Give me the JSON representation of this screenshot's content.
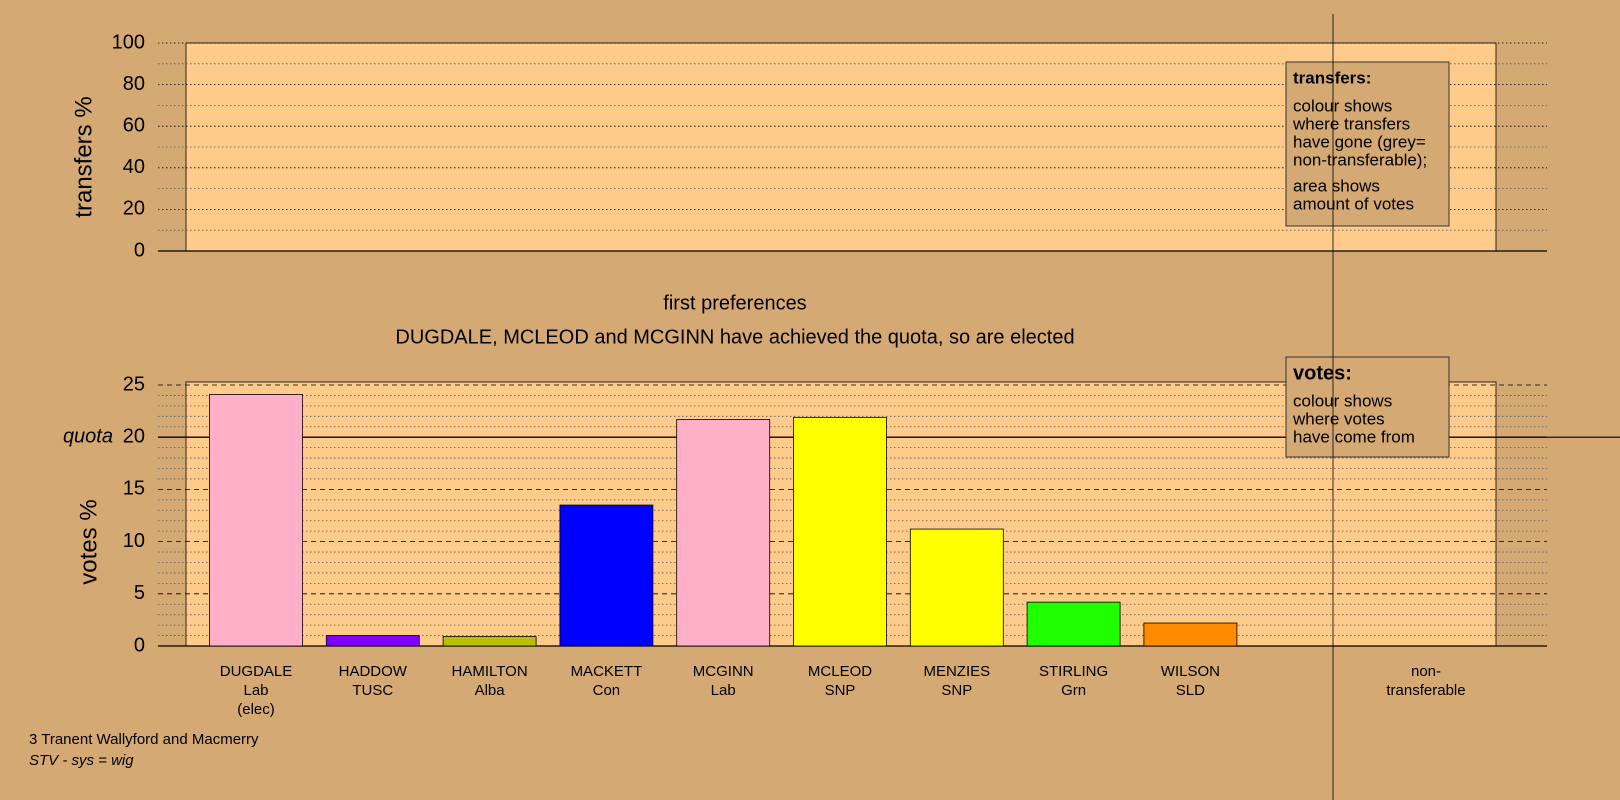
{
  "chart_data": [
    {
      "type": "empty",
      "ylabel": "transfers %",
      "ylim": [
        0,
        100
      ],
      "yticks": [
        0,
        20,
        40,
        60,
        80,
        100
      ],
      "minor_yticks": [
        10,
        30,
        50,
        70,
        90
      ],
      "legend_note": {
        "title": "transfers:",
        "lines": [
          "colour shows",
          "where transfers",
          "have gone (grey=",
          "non-transferable);",
          "area shows",
          "amount of votes"
        ]
      }
    },
    {
      "type": "bar",
      "title": "first preferences",
      "subtitle": "DUGDALE, MCLEOD and MCGINN have achieved the quota, so are elected",
      "ylabel": "votes %",
      "categories": [
        [
          "DUGDALE",
          "Lab",
          "(elec)"
        ],
        [
          "HADDOW",
          "TUSC"
        ],
        [
          "HAMILTON",
          "Alba"
        ],
        [
          "MACKETT",
          "Con"
        ],
        [
          "MCGINN",
          "Lab"
        ],
        [
          "MCLEOD",
          "SNP"
        ],
        [
          "MENZIES",
          "SNP"
        ],
        [
          "STIRLING",
          "Grn"
        ],
        [
          "WILSON",
          "SLD"
        ],
        [
          "non-",
          "transferable"
        ]
      ],
      "values": [
        24.1,
        1.0,
        0.9,
        13.5,
        21.7,
        21.9,
        11.2,
        4.2,
        2.2,
        null
      ],
      "colors": [
        "#ffb0c8",
        "#8000ff",
        "#b8c000",
        "#0000ff",
        "#ffb0c8",
        "#ffff00",
        "#ffff00",
        "#20ff00",
        "#ff8c00",
        null
      ],
      "ylim": [
        0,
        25
      ],
      "yticks": [
        0,
        5,
        10,
        15,
        20,
        25
      ],
      "minor_yticks": [
        1,
        2,
        3,
        4,
        6,
        7,
        8,
        9,
        11,
        12,
        13,
        14,
        16,
        17,
        18,
        19,
        21,
        22,
        23,
        24
      ],
      "quota": {
        "value": 20,
        "label": "quota"
      },
      "legend_note": {
        "title": "votes:",
        "lines": [
          "colour shows",
          "where votes",
          "have come from"
        ]
      }
    }
  ],
  "footer": {
    "constituency": "3 Tranent Wallyford and Macmerry",
    "system": "STV - sys = wig"
  }
}
